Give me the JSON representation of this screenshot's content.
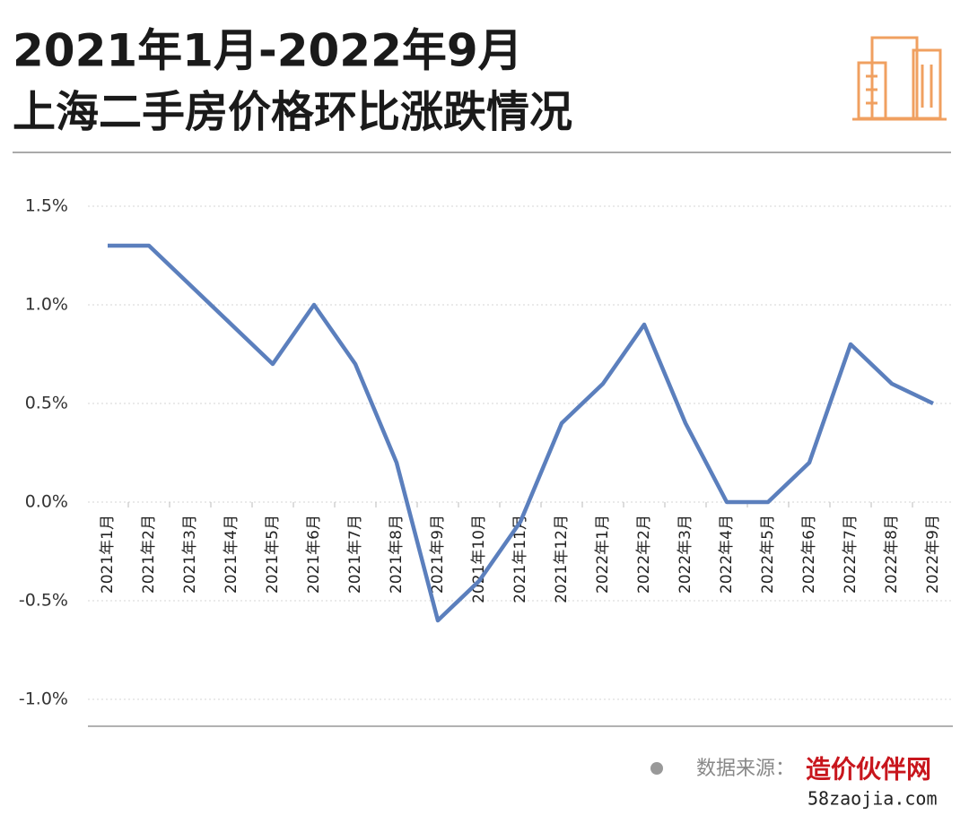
{
  "chart_data": {
    "type": "line",
    "title": "2021年1月-2022年9月",
    "subtitle": "上海二手房价格环比涨跌情况",
    "categories": [
      "2021年1月",
      "2021年2月",
      "2021年3月",
      "2021年4月",
      "2021年5月",
      "2021年6月",
      "2021年7月",
      "2021年8月",
      "2021年9月",
      "2021年10月",
      "2021年11月",
      "2021年12月",
      "2022年1月",
      "2022年2月",
      "2022年3月",
      "2022年4月",
      "2022年5月",
      "2022年6月",
      "2022年7月",
      "2022年8月",
      "2022年9月"
    ],
    "series": [
      {
        "color": "#5b7fbd",
        "values": [
          1.3,
          1.3,
          1.1,
          0.9,
          0.7,
          1.0,
          0.7,
          0.2,
          -0.6,
          -0.4,
          -0.1,
          0.4,
          0.6,
          0.9,
          0.4,
          0.0,
          0.0,
          0.2,
          0.8,
          0.6,
          0.5
        ]
      }
    ],
    "ylim": [
      -1.15,
      1.5
    ],
    "yticks": [
      {
        "value": -1.0,
        "label": "-1.0%"
      },
      {
        "value": -0.5,
        "label": "-0.5%"
      },
      {
        "value": 0,
        "label": "0.0%"
      },
      {
        "value": 0.5,
        "label": "0.5%"
      },
      {
        "value": 1.0,
        "label": "1.0%"
      },
      {
        "value": 1.5,
        "label": "1.5%"
      }
    ],
    "grid": true
  },
  "footer": {
    "source_label": "数据来源：",
    "site_name": "造价伙伴网",
    "site_url": "58zaojia.com"
  }
}
